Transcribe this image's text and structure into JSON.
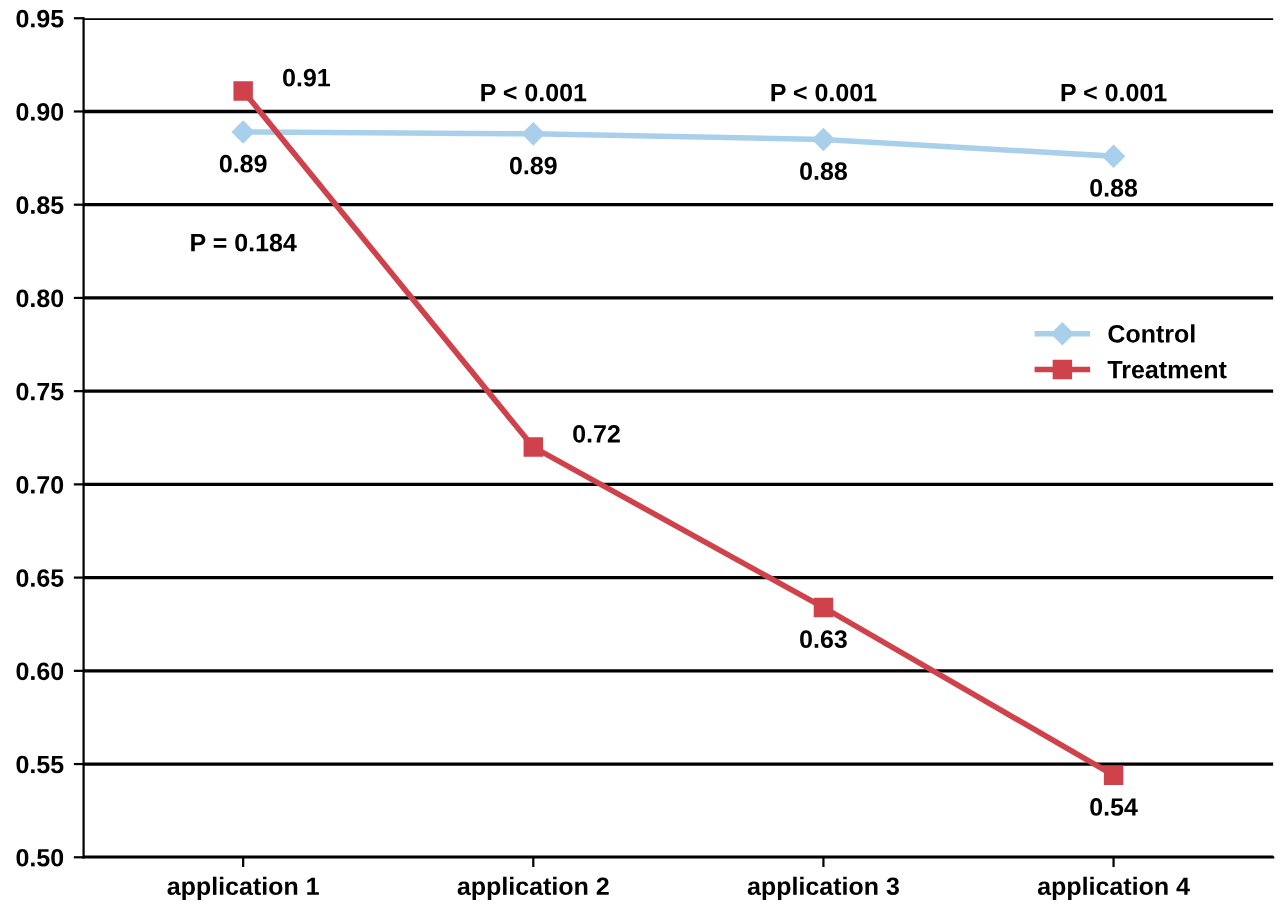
{
  "chart_data": {
    "type": "line",
    "categories": [
      "application 1",
      "application 2",
      "application 3",
      "application 4"
    ],
    "series": [
      {
        "name": "Control",
        "color": "#a9d0ea",
        "marker": "diamond",
        "values": [
          0.889,
          0.888,
          0.885,
          0.876
        ],
        "value_labels": [
          "0.89",
          "0.89",
          "0.88",
          "0.88"
        ]
      },
      {
        "name": "Treatment",
        "color": "#d0424b",
        "marker": "square",
        "values": [
          0.911,
          0.72,
          0.634,
          0.544
        ],
        "value_labels": [
          "0.91",
          "0.72",
          "0.63",
          "0.54"
        ]
      }
    ],
    "ylim": [
      0.5,
      0.95
    ],
    "yticks": [
      {
        "value": 0.5,
        "label": "0.50"
      },
      {
        "value": 0.55,
        "label": "0.55"
      },
      {
        "value": 0.6,
        "label": "0.60"
      },
      {
        "value": 0.65,
        "label": "0.65"
      },
      {
        "value": 0.7,
        "label": "0.70"
      },
      {
        "value": 0.75,
        "label": "0.75"
      },
      {
        "value": 0.8,
        "label": "0.80"
      },
      {
        "value": 0.85,
        "label": "0.85"
      },
      {
        "value": 0.9,
        "label": "0.90"
      },
      {
        "value": 0.95,
        "label": "0.95"
      }
    ],
    "grid": "y",
    "legend": "center right",
    "annotations": [
      "P = 0.184",
      "P < 0.001",
      "P < 0.001",
      "P < 0.001"
    ]
  }
}
